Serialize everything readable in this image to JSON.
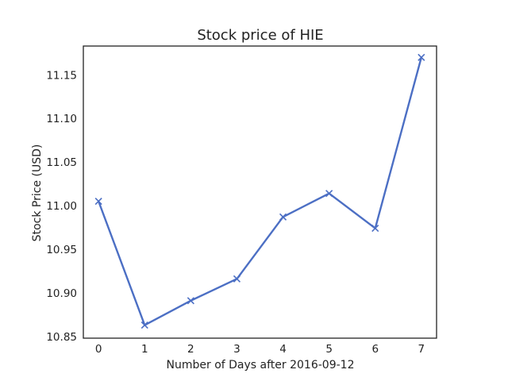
{
  "chart_data": {
    "type": "line",
    "title": "Stock price of HIE",
    "xlabel": "Number of Days after 2016-09-12",
    "ylabel": "Stock Price (USD)",
    "x": [
      0,
      1,
      2,
      3,
      4,
      5,
      6,
      7
    ],
    "series": [
      {
        "values": [
          11.005,
          10.863,
          10.891,
          10.916,
          10.987,
          11.014,
          10.974,
          11.17
        ],
        "color": "#4c6fc4",
        "marker": "x"
      }
    ],
    "xlim": [
      -0.33,
      7.33
    ],
    "ylim": [
      10.848,
      11.183
    ],
    "xticks": [
      "0",
      "1",
      "2",
      "3",
      "4",
      "5",
      "6",
      "7"
    ],
    "yticks": [
      "10.85",
      "10.90",
      "10.95",
      "11.00",
      "11.05",
      "11.10",
      "11.15"
    ],
    "grid": false,
    "legend": "none"
  }
}
